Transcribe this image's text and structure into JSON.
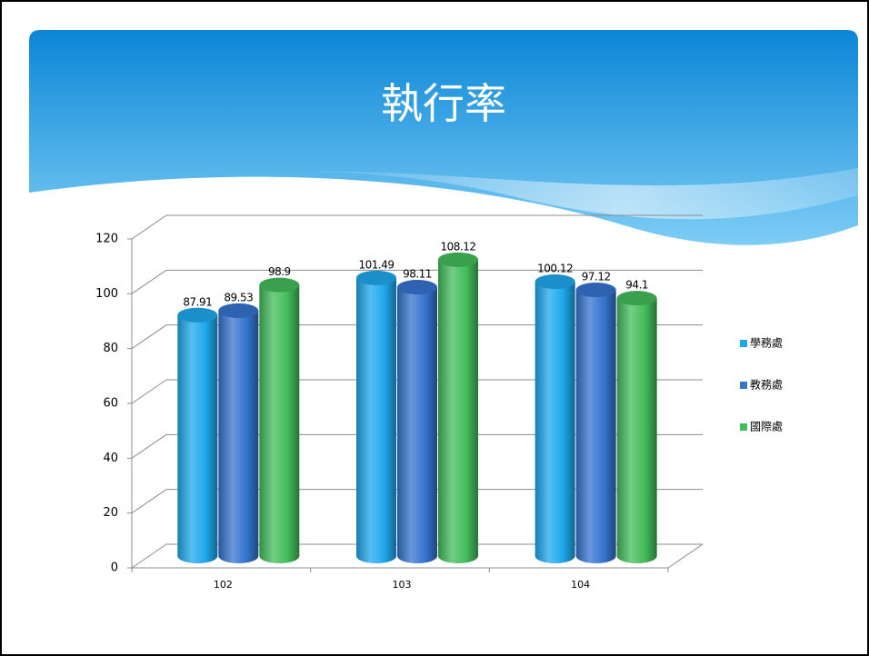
{
  "chart_data": {
    "type": "bar",
    "title": "執行率",
    "categories": [
      "102",
      "103",
      "104"
    ],
    "series": [
      {
        "name": "學務處",
        "color": "#1ea8ec",
        "values": [
          87.91,
          101.49,
          100.12
        ]
      },
      {
        "name": "教務處",
        "color": "#3574cf",
        "values": [
          89.53,
          98.11,
          97.12
        ]
      },
      {
        "name": "國際處",
        "color": "#43bd5c",
        "values": [
          98.9,
          108.12,
          94.1
        ]
      }
    ],
    "ylim": [
      0,
      120
    ],
    "yticks": [
      0,
      20,
      40,
      60,
      80,
      100,
      120
    ],
    "grid": true,
    "legend": "right"
  }
}
